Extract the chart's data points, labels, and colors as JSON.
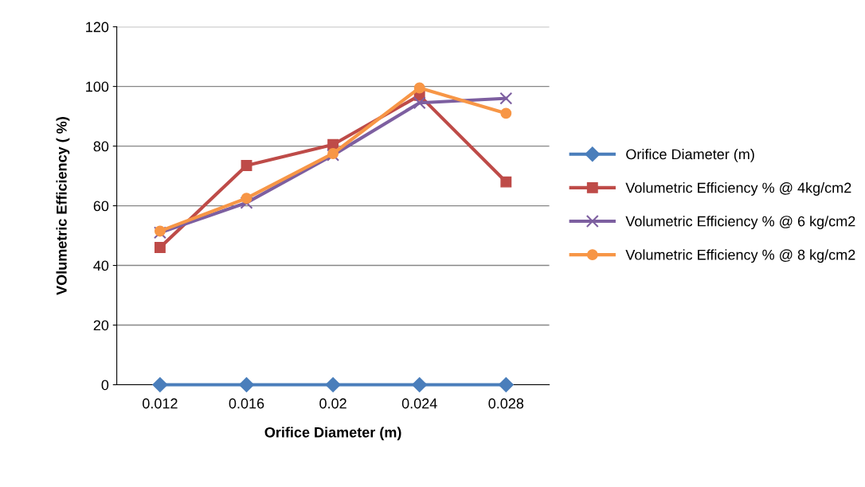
{
  "chart_data": {
    "type": "line",
    "xlabel": "Orifice Diameter (m)",
    "ylabel": "VOlumetric Efficiency ( %)",
    "categories": [
      "0.012",
      "0.016",
      "0.02",
      "0.024",
      "0.028"
    ],
    "series": [
      {
        "name": "Orifice Diameter (m)",
        "color": "#4a7ebb",
        "marker": "diamond",
        "values": [
          0,
          0,
          0,
          0,
          0
        ]
      },
      {
        "name": "Volumetric Efficiency % @ 4kg/cm2",
        "color": "#be4b48",
        "marker": "square",
        "values": [
          46,
          73.5,
          80.5,
          97,
          68
        ]
      },
      {
        "name": "Volumetric Efficiency % @ 6 kg/cm2",
        "color": "#7d5fa0",
        "marker": "cross",
        "values": [
          51,
          61,
          77,
          94.5,
          96
        ]
      },
      {
        "name": "Volumetric Efficiency % @ 8 kg/cm2",
        "color": "#f79646",
        "marker": "circle",
        "values": [
          51.5,
          62.5,
          77.5,
          99.5,
          91
        ]
      }
    ],
    "ylim": [
      0,
      120
    ],
    "yticks": [
      0,
      20,
      40,
      60,
      80,
      100,
      120
    ],
    "grid": "y",
    "legend": "right"
  }
}
